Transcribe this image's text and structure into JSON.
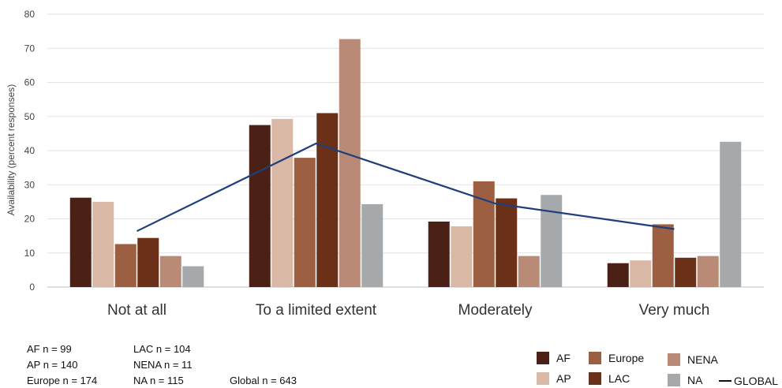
{
  "chart_data": {
    "type": "bar",
    "title": "",
    "xlabel": "",
    "ylabel": "Availability (percent responses)",
    "ylim": [
      0,
      80
    ],
    "yticks": [
      0,
      10,
      20,
      30,
      40,
      50,
      60,
      70,
      80
    ],
    "grid": true,
    "categories": [
      "Not at all",
      "To a limited extent",
      "Moderately",
      "Very much"
    ],
    "series": [
      {
        "name": "AF",
        "color": "#4a2114",
        "values": [
          26.2,
          47.5,
          19.2,
          7.0
        ]
      },
      {
        "name": "AP",
        "color": "#d9b8a5",
        "values": [
          25.0,
          49.3,
          17.8,
          7.8
        ]
      },
      {
        "name": "Europe",
        "color": "#9c5f41",
        "values": [
          12.6,
          37.9,
          31.0,
          18.4
        ]
      },
      {
        "name": "LAC",
        "color": "#6b3118",
        "values": [
          14.4,
          51.0,
          26.0,
          8.6
        ]
      },
      {
        "name": "NENA",
        "color": "#b98b77",
        "values": [
          9.1,
          72.7,
          9.1,
          9.1
        ]
      },
      {
        "name": "NA",
        "color": "#a6a9ab",
        "values": [
          6.1,
          24.3,
          27.0,
          42.6
        ]
      }
    ],
    "line_series": {
      "name": "GLOBAL",
      "color": "#1f3f7a",
      "values": [
        16.4,
        42.1,
        24.5,
        17.0
      ]
    },
    "legend_position": "bottom-right"
  },
  "sample_sizes": {
    "col1": [
      "AF n = 99",
      "AP n = 140",
      "Europe n = 174"
    ],
    "col2": [
      "LAC n = 104",
      "NENA  n = 11",
      "NA n = 115"
    ],
    "global": "Global n = 643"
  },
  "legend": {
    "items": [
      "AF",
      "Europe",
      "NENA",
      "AP",
      "LAC",
      "NA"
    ],
    "line_label": "GLOBAL"
  }
}
